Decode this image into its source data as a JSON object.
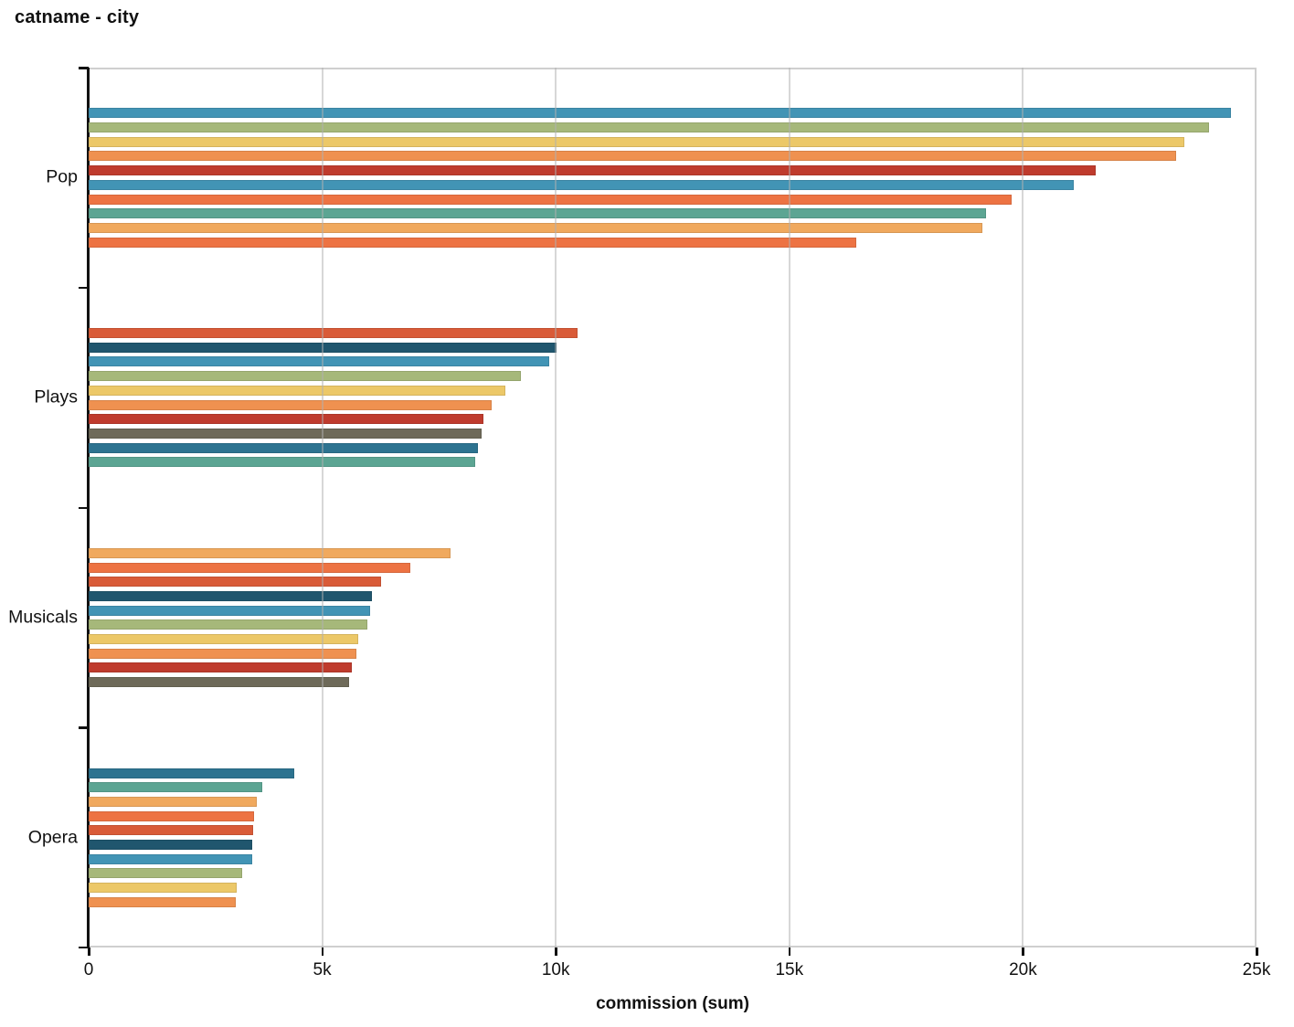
{
  "title": "catname - city",
  "chart_data": {
    "type": "bar",
    "orientation": "horizontal",
    "title": "catname - city",
    "xlabel": "commission (sum)",
    "ylabel": "",
    "xlim": [
      0,
      25000
    ],
    "x_tick_labels": [
      "0",
      "5k",
      "10k",
      "15k",
      "20k",
      "25k"
    ],
    "x_tick_values": [
      0,
      5000,
      10000,
      15000,
      20000,
      25000
    ],
    "grid": true,
    "legend": false,
    "palette": {
      "steel-blue": "#4294b5",
      "olive": "#a6b87a",
      "yellow": "#ecc868",
      "orange": "#ef9150",
      "brick-red": "#bf3b2d",
      "orange-red": "#ed7343",
      "teal-green": "#5ca593",
      "light-orange": "#f0a95e",
      "dark-orange-red": "#d95b38",
      "navy": "#20566e",
      "brown-gray": "#6e6a59",
      "medium-blue": "#2d7390"
    },
    "groups": [
      {
        "category": "Pop",
        "bars": [
          {
            "value": 24450,
            "color_name": "steel-blue",
            "color": "#4294b5"
          },
          {
            "value": 23980,
            "color_name": "olive",
            "color": "#a6b87a"
          },
          {
            "value": 23450,
            "color_name": "yellow",
            "color": "#ecc868"
          },
          {
            "value": 23280,
            "color_name": "orange",
            "color": "#ef9150"
          },
          {
            "value": 21550,
            "color_name": "brick-red",
            "color": "#bf3b2d"
          },
          {
            "value": 21090,
            "color_name": "steel-blue",
            "color": "#4294b5"
          },
          {
            "value": 19760,
            "color_name": "orange-red",
            "color": "#ed7343"
          },
          {
            "value": 19210,
            "color_name": "teal-green",
            "color": "#5ca593"
          },
          {
            "value": 19140,
            "color_name": "light-orange",
            "color": "#f0a95e"
          },
          {
            "value": 16430,
            "color_name": "orange-red",
            "color": "#ed7343"
          }
        ]
      },
      {
        "category": "Plays",
        "bars": [
          {
            "value": 10470,
            "color_name": "dark-orange-red",
            "color": "#d95b38"
          },
          {
            "value": 10020,
            "color_name": "navy",
            "color": "#20566e"
          },
          {
            "value": 9850,
            "color_name": "steel-blue",
            "color": "#4294b5"
          },
          {
            "value": 9250,
            "color_name": "olive",
            "color": "#a6b87a"
          },
          {
            "value": 8920,
            "color_name": "yellow",
            "color": "#ecc868"
          },
          {
            "value": 8630,
            "color_name": "orange",
            "color": "#ef9150"
          },
          {
            "value": 8460,
            "color_name": "brick-red",
            "color": "#bf3b2d"
          },
          {
            "value": 8420,
            "color_name": "brown-gray",
            "color": "#6e6a59"
          },
          {
            "value": 8330,
            "color_name": "medium-blue",
            "color": "#2d7390"
          },
          {
            "value": 8270,
            "color_name": "teal-green",
            "color": "#5ca593"
          }
        ]
      },
      {
        "category": "Musicals",
        "bars": [
          {
            "value": 7750,
            "color_name": "light-orange",
            "color": "#f0a95e"
          },
          {
            "value": 6890,
            "color_name": "orange-red",
            "color": "#ed7343"
          },
          {
            "value": 6250,
            "color_name": "dark-orange-red",
            "color": "#d95b38"
          },
          {
            "value": 6060,
            "color_name": "navy",
            "color": "#20566e"
          },
          {
            "value": 6030,
            "color_name": "steel-blue",
            "color": "#4294b5"
          },
          {
            "value": 5970,
            "color_name": "olive",
            "color": "#a6b87a"
          },
          {
            "value": 5770,
            "color_name": "yellow",
            "color": "#ecc868"
          },
          {
            "value": 5730,
            "color_name": "orange",
            "color": "#ef9150"
          },
          {
            "value": 5630,
            "color_name": "brick-red",
            "color": "#bf3b2d"
          },
          {
            "value": 5570,
            "color_name": "brown-gray",
            "color": "#6e6a59"
          }
        ]
      },
      {
        "category": "Opera",
        "bars": [
          {
            "value": 4400,
            "color_name": "medium-blue",
            "color": "#2d7390"
          },
          {
            "value": 3720,
            "color_name": "teal-green",
            "color": "#5ca593"
          },
          {
            "value": 3590,
            "color_name": "light-orange",
            "color": "#f0a95e"
          },
          {
            "value": 3550,
            "color_name": "orange-red",
            "color": "#ed7343"
          },
          {
            "value": 3530,
            "color_name": "dark-orange-red",
            "color": "#d95b38"
          },
          {
            "value": 3510,
            "color_name": "navy",
            "color": "#20566e"
          },
          {
            "value": 3500,
            "color_name": "steel-blue",
            "color": "#4294b5"
          },
          {
            "value": 3290,
            "color_name": "olive",
            "color": "#a6b87a"
          },
          {
            "value": 3160,
            "color_name": "yellow",
            "color": "#ecc868"
          },
          {
            "value": 3140,
            "color_name": "orange",
            "color": "#ef9150"
          }
        ]
      }
    ]
  }
}
